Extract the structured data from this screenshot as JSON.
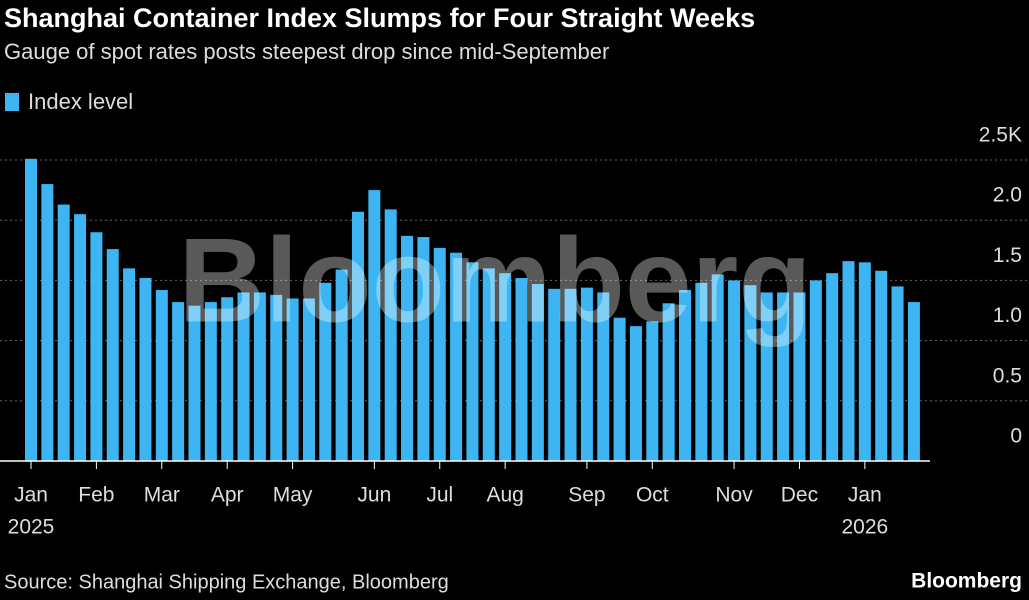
{
  "chart_data": {
    "type": "bar",
    "title": "Shanghai Container Index Slumps for Four Straight Weeks",
    "subtitle": "Gauge of spot rates posts steepest drop since mid-September",
    "watermark": "Bloomberg",
    "source": "Source: Shanghai Shipping Exchange, Bloomberg",
    "logo": "Bloomberg",
    "categories": [
      "Jan",
      null,
      null,
      null,
      "Feb",
      null,
      null,
      null,
      "Mar",
      null,
      null,
      null,
      "Apr",
      null,
      null,
      null,
      "May",
      null,
      null,
      null,
      null,
      "Jun",
      null,
      null,
      null,
      "Jul",
      null,
      null,
      null,
      "Aug",
      null,
      null,
      null,
      null,
      "Sep",
      null,
      null,
      null,
      "Oct",
      null,
      null,
      null,
      null,
      "Nov",
      null,
      null,
      null,
      "Dec",
      null,
      null,
      null,
      "Jan",
      null,
      null,
      null
    ],
    "category_years": [
      "2025",
      null,
      null,
      null,
      null,
      null,
      null,
      null,
      null,
      null,
      null,
      null,
      null,
      null,
      null,
      null,
      null,
      null,
      null,
      null,
      null,
      null,
      null,
      null,
      null,
      null,
      null,
      null,
      null,
      null,
      null,
      null,
      null,
      null,
      null,
      null,
      null,
      null,
      null,
      null,
      null,
      null,
      null,
      null,
      null,
      null,
      null,
      null,
      null,
      null,
      null,
      "2026",
      null,
      null,
      null
    ],
    "series": [
      {
        "name": "Index level",
        "color": "#3db5f2",
        "values": [
          2.51,
          2.3,
          2.13,
          2.05,
          1.9,
          1.76,
          1.6,
          1.52,
          1.42,
          1.32,
          1.29,
          1.32,
          1.36,
          1.4,
          1.4,
          1.38,
          1.35,
          1.35,
          1.48,
          1.59,
          2.07,
          2.25,
          2.09,
          1.87,
          1.86,
          1.77,
          1.73,
          1.65,
          1.6,
          1.56,
          1.52,
          1.47,
          1.43,
          1.43,
          1.44,
          1.4,
          1.19,
          1.12,
          1.16,
          1.31,
          1.42,
          1.48,
          1.55,
          1.5,
          1.46,
          1.4,
          1.4,
          1.4,
          1.5,
          1.56,
          1.66,
          1.65,
          1.58,
          1.45,
          1.32
        ]
      }
    ],
    "ylim": [
      0,
      2.5
    ],
    "yticks": [
      0,
      0.5,
      {
        "value": 1,
        "label": "1.0"
      },
      1.5,
      {
        "value": 2,
        "label": "2.0"
      },
      {
        "value": 2.5,
        "label": "2.5K"
      }
    ],
    "grid": true
  }
}
